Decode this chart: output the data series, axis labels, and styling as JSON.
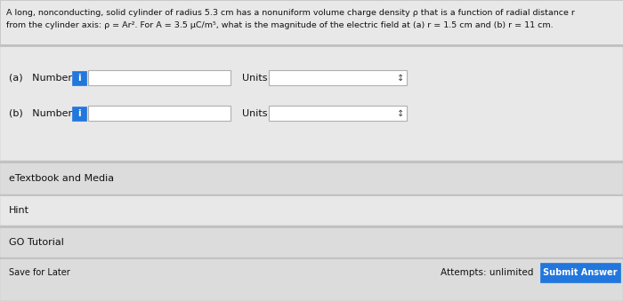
{
  "title_line1": "A long, nonconducting, solid cylinder of radius 5.3 cm has a nonuniform volume charge density ρ that is a function of radial distance r",
  "title_line2": "from the cylinder axis: ρ = Ar². For A = 3.5 μC/m⁵, what is the magnitude of the electric field at (a) r = 1.5 cm and (b) r = 11 cm.",
  "label_a": "(a)   Number",
  "label_b": "(b)   Number",
  "units_label": "Units",
  "etextbook": "eTextbook and Media",
  "hint": "Hint",
  "go_tutorial": "GO Tutorial",
  "save_later": "Save for Later",
  "attempts": "Attempts: unlimited",
  "submit": "Submit Answer",
  "bg_color": "#d8d8d8",
  "content_bg": "#e8e8e8",
  "white": "#f8f8f8",
  "blue_btn": "#2277dd",
  "info_blue": "#2277dd",
  "input_bg": "#ffffff",
  "dropdown_bg": "#f0f0f0",
  "text_color": "#111111",
  "submit_text": "#ffffff",
  "section_bg": "#dcdcdc",
  "title_bg": "#e8e8e8",
  "sep_color": "#c0c0c0"
}
